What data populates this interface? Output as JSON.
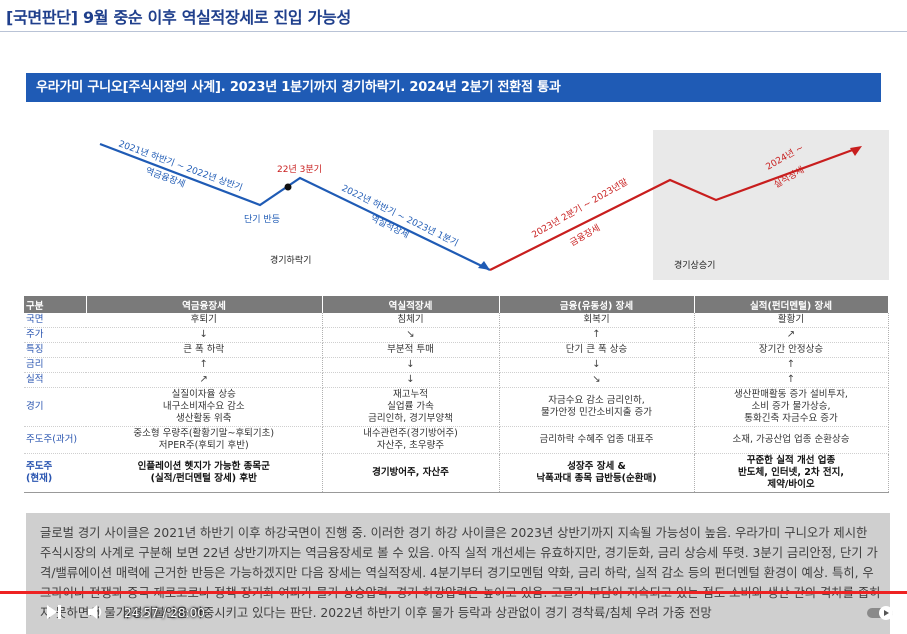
{
  "header": {
    "title": "[국면판단] 9월 중순 이후 역실적장세로 진입 가능성"
  },
  "banner": {
    "text": "우라가미 구니오[주식시장의 사계]. 2023년 1분기까지 경기하락기. 2024년 2분기 전환점 통과"
  },
  "cycle": {
    "labels": {
      "phase1_period": "2021년 하반기 ~ 2022년 상반기",
      "phase1_name": "역금융장세",
      "short_rebound": "단기 반등",
      "q3_2022": "22년 3분기",
      "phase2_period": "2022년 하반기 ~ 2023년 1분기",
      "phase2_name": "역실적장세",
      "downturn": "경기하락기",
      "phase3_period": "2023년 2분기 ~ 2023년말",
      "phase3_name": "금융장세",
      "phase4_period": "2024년 ~",
      "phase4_name": "실적장세",
      "upturn": "경기상승기"
    },
    "colors": {
      "down": "#1f5bb5",
      "up": "#c81e1e",
      "upturn_box": "#e8e8e8"
    }
  },
  "table": {
    "headers": [
      "구분",
      "역금융장세",
      "역실적장세",
      "금융(유동성) 장세",
      "실적(펀더멘털) 장세"
    ],
    "rows": [
      {
        "label": "국면",
        "cells": [
          "후퇴기",
          "침체기",
          "회복기",
          "활황기"
        ]
      },
      {
        "label": "주가",
        "cells": [
          "↓",
          "↘",
          "↑",
          "↗"
        ]
      },
      {
        "label": "특징",
        "cells": [
          "큰 폭 하락",
          "부분적 투매",
          "단기 큰 폭 상승",
          "장기간 안정상승"
        ]
      },
      {
        "label": "금리",
        "cells": [
          "↑",
          "↓",
          "↓",
          "↑"
        ]
      },
      {
        "label": "실적",
        "cells": [
          "↗",
          "↓",
          "↘",
          "↑"
        ]
      },
      {
        "label": "경기",
        "cells": [
          "실질이자율 상승\n내구소비재수요 감소\n생산활동 위축",
          "재고누적\n실업률 가속\n금리인하, 경기부양책",
          "자금수요 감소 금리인하,\n물가안정 민간소비지출 증가",
          "생산판매활동 증가 설비투자,\n소비 증가 물가상승,\n통화긴축 자금수요 증가"
        ]
      },
      {
        "label": "주도주(과거)",
        "cells": [
          "중소형 우량주(활황기말~후퇴기초)\n저PER주(후퇴기 후반)",
          "내수관련주(경기방어주)\n자산주, 초우량주",
          "금리하락 수혜주 업종 대표주",
          "소재, 가공산업 업종 순환상승"
        ]
      },
      {
        "label": "주도주\n(현재)",
        "cells": [
          "인플레이션 헷지가 가능한 종목군\n(실적/펀더멘털 장세) 후반",
          "경기방어주, 자산주",
          "성장주 장세 &\n낙폭과대 종목 급반등(순환매)",
          "꾸준한 실적 개선 업종\n반도체, 인터넷, 2차 전지,\n제약/바이오"
        ]
      }
    ]
  },
  "summary": {
    "text": "글로벌 경기 사이클은 2021년 하반기 이후 하강국면이 진행 중. 이러한 경기 하강 사이클은 2023년 상반기까지 지속될 가능성이 높음. 우라가미 구니오가 제시한 주식시장의 사계로 구분해 보면 22년 상반기까지는 역금융장세로 볼 수 있음. 아직 실적 개선세는 유효하지만, 경기둔화, 금리 상승세 뚜렷. 3분기 금리안정, 단기 가격/밸류에이션 매력에 근거한 반등은 가능하겠지만 다음 장세는 역실적장세. 4분기부터 경기모멘텀 약화, 금리 하락, 실적 감소 등의 펀더멘털 환경이 예상. 특히, 우크라이나 전쟁과 중국 제로코로나 정책 장기화 여파가 물가 상승압력, 경기 하강압력은 높이고 있음. 고물가 부담이 지속되고 있는 점도 소비와 생산 간의 격차를 좁히지 못하면서 물가/경기불안을 가중시키고 있다는 판단. 2022년 하반기 이후 물가 등락과 상관없이 경기 경착륙/침체 우려 가중 전망"
  },
  "player": {
    "current_time": "24:57",
    "separator": "/",
    "duration": "28:00",
    "time_text": "24:57 / 28:00",
    "progress": 0.891,
    "progress_color": "#e22222",
    "icons": [
      "pause-icon",
      "next-icon",
      "volume-icon",
      "autoplay-toggle-icon"
    ]
  }
}
